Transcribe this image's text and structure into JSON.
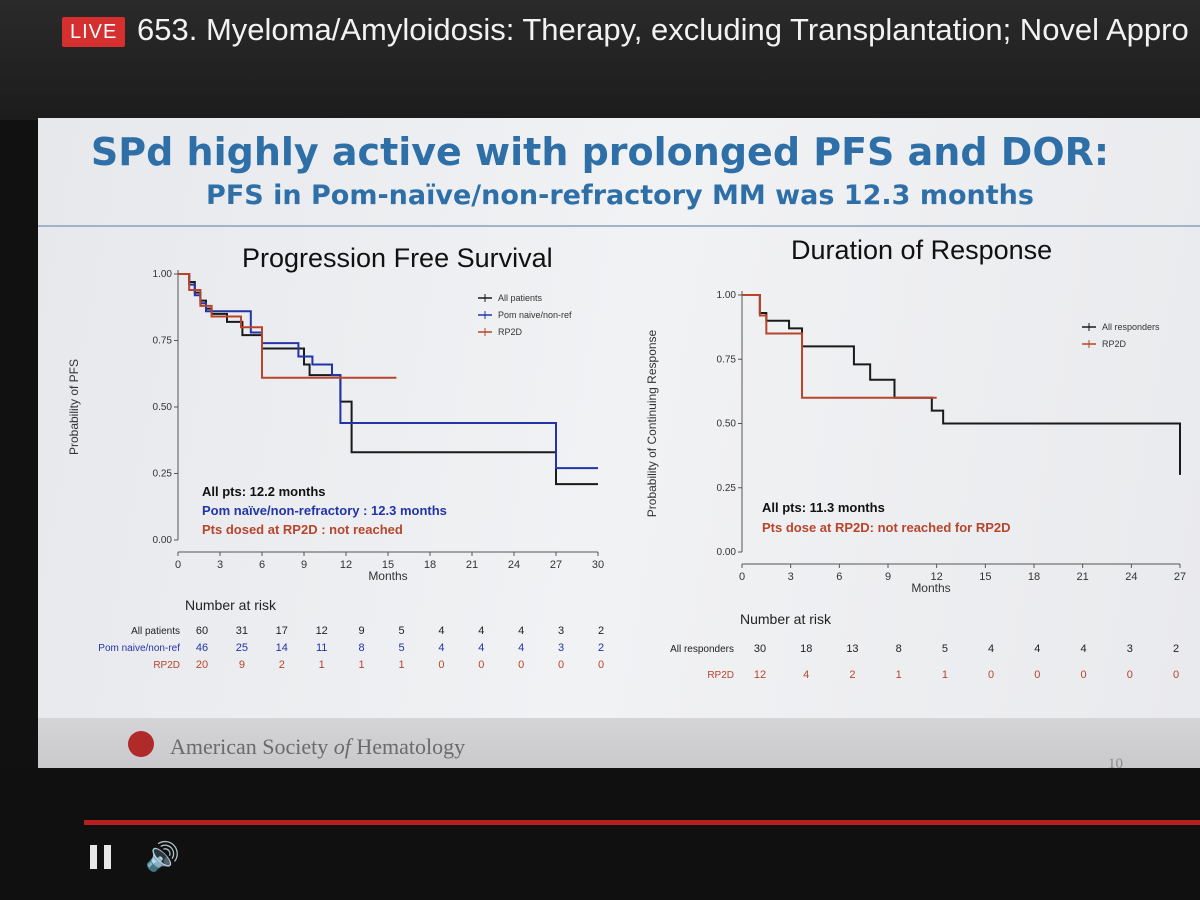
{
  "live_badge": "LIVE",
  "session_title": "653. Myeloma/Amyloidosis: Therapy, excluding Transplantation; Novel Appro",
  "slide": {
    "title": "SPd highly active with prolonged PFS and DOR:",
    "subtitle": "PFS in Pom-naïve/non-refractory MM was 12.3 months",
    "footer_org_a": "American Society ",
    "footer_org_b": "of",
    "footer_org_c": " Hematology",
    "page_number": "10"
  },
  "chart_data": [
    {
      "type": "line",
      "step": true,
      "title": "Progression Free Survival",
      "xlabel": "Months",
      "ylabel": "Probability of PFS",
      "xlim": [
        0,
        30
      ],
      "ylim": [
        0,
        1
      ],
      "x_ticks": [
        "0",
        "3",
        "6",
        "9",
        "12",
        "15",
        "18",
        "21",
        "24",
        "27",
        "30"
      ],
      "y_ticks": [
        "0.00",
        "0.25",
        "0.50",
        "0.75",
        "1.00"
      ],
      "legend_position": "top-right",
      "series": [
        {
          "name": "All patients",
          "color": "#1a1a1a",
          "x": [
            0,
            0.8,
            1.2,
            1.6,
            2.0,
            2.4,
            3.5,
            4.6,
            6.0,
            8.3,
            9.0,
            9.4,
            11.0,
            11.6,
            12.4,
            27.0,
            30.0
          ],
          "y": [
            1.0,
            0.97,
            0.93,
            0.9,
            0.87,
            0.85,
            0.82,
            0.77,
            0.72,
            0.72,
            0.66,
            0.62,
            0.62,
            0.52,
            0.33,
            0.21,
            0.21
          ]
        },
        {
          "name": "Pom naive/non-ref",
          "color": "#2334a8",
          "x": [
            0,
            0.8,
            1.2,
            1.6,
            2.0,
            4.6,
            5.2,
            6.0,
            8.6,
            9.6,
            11.0,
            11.6,
            27.0,
            30.0
          ],
          "y": [
            1.0,
            0.96,
            0.92,
            0.89,
            0.86,
            0.86,
            0.78,
            0.74,
            0.69,
            0.66,
            0.62,
            0.44,
            0.27,
            0.27
          ]
        },
        {
          "name": "RP2D",
          "color": "#b8452b",
          "x": [
            0,
            0.8,
            1.6,
            2.4,
            4.5,
            6.0,
            15.6
          ],
          "y": [
            1.0,
            0.94,
            0.88,
            0.84,
            0.8,
            0.61,
            0.61
          ]
        }
      ],
      "annotations": [
        {
          "text": "All pts: 12.2 months",
          "color": "#111111"
        },
        {
          "text": "Pom naïve/non-refractory : 12.3 months",
          "color": "#2334a8"
        },
        {
          "text": "Pts dosed at RP2D : not reached",
          "color": "#b8452b"
        }
      ],
      "risk_table": {
        "title": "Number at risk",
        "rows": [
          {
            "label": "All patients",
            "color": "#222222",
            "values": [
              "60",
              "31",
              "17",
              "12",
              "9",
              "5",
              "4",
              "4",
              "4",
              "3",
              "2"
            ]
          },
          {
            "label": "Pom naive/non-ref",
            "color": "#2334a8",
            "values": [
              "46",
              "25",
              "14",
              "11",
              "8",
              "5",
              "4",
              "4",
              "4",
              "3",
              "2"
            ]
          },
          {
            "label": "RP2D",
            "color": "#b8452b",
            "values": [
              "20",
              "9",
              "2",
              "1",
              "1",
              "1",
              "0",
              "0",
              "0",
              "0",
              "0"
            ]
          }
        ]
      }
    },
    {
      "type": "line",
      "step": true,
      "title": "Duration of Response",
      "xlabel": "Months",
      "ylabel": "Probability of Continuing Response",
      "xlim": [
        0,
        27
      ],
      "ylim": [
        0,
        1
      ],
      "x_ticks": [
        "0",
        "3",
        "6",
        "9",
        "12",
        "15",
        "18",
        "21",
        "24",
        "27"
      ],
      "y_ticks": [
        "0.00",
        "0.25",
        "0.50",
        "0.75",
        "1.00"
      ],
      "legend_position": "top-right",
      "series": [
        {
          "name": "All responders",
          "color": "#1a1a1a",
          "x": [
            0,
            1.1,
            1.5,
            2.9,
            3.7,
            5.5,
            6.9,
            7.9,
            9.4,
            11.7,
            12.4,
            26.8,
            27.0
          ],
          "y": [
            1.0,
            0.93,
            0.9,
            0.87,
            0.8,
            0.8,
            0.73,
            0.67,
            0.6,
            0.55,
            0.5,
            0.5,
            0.3
          ]
        },
        {
          "name": "RP2D",
          "color": "#b8452b",
          "x": [
            0,
            1.1,
            1.5,
            3.7,
            12.0
          ],
          "y": [
            1.0,
            0.92,
            0.85,
            0.6,
            0.6
          ]
        }
      ],
      "annotations": [
        {
          "text": "All pts: 11.3 months",
          "color": "#111111"
        },
        {
          "text": "Pts dose at RP2D: not reached for RP2D",
          "color": "#b8452b"
        }
      ],
      "risk_table": {
        "title": "Number at risk",
        "rows": [
          {
            "label": "All responders",
            "color": "#222222",
            "values": [
              "30",
              "18",
              "13",
              "8",
              "5",
              "4",
              "4",
              "4",
              "3",
              "2"
            ]
          },
          {
            "label": "RP2D",
            "color": "#b8452b",
            "values": [
              "12",
              "4",
              "2",
              "1",
              "1",
              "0",
              "0",
              "0",
              "0",
              "0"
            ]
          }
        ]
      }
    }
  ]
}
